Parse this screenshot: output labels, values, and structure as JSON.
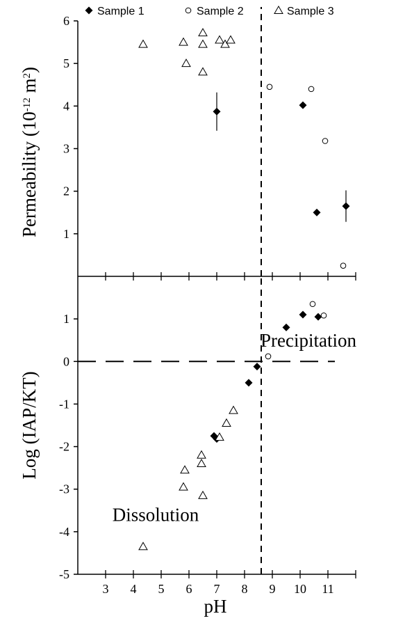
{
  "legend": {
    "placement": "top",
    "entries": [
      {
        "marker": "filled-diamond",
        "label": "Sample 1"
      },
      {
        "marker": "open-circle",
        "label": "Sample 2"
      },
      {
        "marker": "open-triangle",
        "label": "Sample 3"
      }
    ]
  },
  "chart_data": [
    {
      "type": "scatter",
      "panel": "top",
      "ylabel_main": "Permeability (10",
      "ylabel_exp": "-12",
      "ylabel_unit": " m",
      "ylabel_unit_exp": "2",
      "ylabel_close": ")",
      "xlim": [
        2,
        12
      ],
      "ylim": [
        0,
        6
      ],
      "yticks": [
        1,
        2,
        3,
        4,
        5,
        6
      ],
      "reference_lines": [
        {
          "orientation": "vertical",
          "x": 8.6,
          "style": "dashed"
        }
      ],
      "series": [
        {
          "name": "Sample 1",
          "marker": "filled-diamond",
          "points": [
            {
              "x": 7.0,
              "y": 3.87,
              "err": 0.45
            },
            {
              "x": 10.1,
              "y": 4.02
            },
            {
              "x": 10.6,
              "y": 1.5
            },
            {
              "x": 11.65,
              "y": 1.65,
              "err": 0.37
            }
          ]
        },
        {
          "name": "Sample 2",
          "marker": "open-circle",
          "points": [
            {
              "x": 8.9,
              "y": 4.45
            },
            {
              "x": 10.4,
              "y": 4.4
            },
            {
              "x": 10.9,
              "y": 3.18
            },
            {
              "x": 11.55,
              "y": 0.25
            }
          ]
        },
        {
          "name": "Sample 3",
          "marker": "open-triangle",
          "points": [
            {
              "x": 4.35,
              "y": 5.45
            },
            {
              "x": 5.8,
              "y": 5.5
            },
            {
              "x": 5.9,
              "y": 5.0
            },
            {
              "x": 6.5,
              "y": 5.72
            },
            {
              "x": 6.5,
              "y": 5.45
            },
            {
              "x": 6.5,
              "y": 4.8
            },
            {
              "x": 7.1,
              "y": 5.55
            },
            {
              "x": 7.3,
              "y": 5.45
            },
            {
              "x": 7.5,
              "y": 5.55
            }
          ]
        }
      ]
    },
    {
      "type": "scatter",
      "panel": "bottom",
      "xlabel": "pH",
      "ylabel": "Log (IAP/KT)",
      "xlim": [
        2,
        12
      ],
      "ylim": [
        -5,
        2
      ],
      "xticks": [
        3,
        4,
        5,
        6,
        7,
        8,
        9,
        10,
        11
      ],
      "yticks": [
        -5,
        -4,
        -3,
        -2,
        -1,
        0,
        1
      ],
      "reference_lines": [
        {
          "orientation": "vertical",
          "x": 8.6,
          "style": "dashed"
        },
        {
          "orientation": "horizontal",
          "y": 0,
          "style": "dashed"
        }
      ],
      "annotations": [
        {
          "text": "Precipitation",
          "x": 10.3,
          "y": 0.35
        },
        {
          "text": "Dissolution",
          "x": 4.8,
          "y": -3.75
        }
      ],
      "series": [
        {
          "name": "Sample 1",
          "marker": "filled-diamond",
          "points": [
            {
              "x": 6.9,
              "y": -1.75
            },
            {
              "x": 7.0,
              "y": -1.82
            },
            {
              "x": 8.15,
              "y": -0.5
            },
            {
              "x": 8.45,
              "y": -0.12
            },
            {
              "x": 9.5,
              "y": 0.8
            },
            {
              "x": 10.1,
              "y": 1.1
            },
            {
              "x": 10.65,
              "y": 1.05
            }
          ]
        },
        {
          "name": "Sample 2",
          "marker": "open-circle",
          "points": [
            {
              "x": 8.85,
              "y": 0.12
            },
            {
              "x": 10.45,
              "y": 1.35
            },
            {
              "x": 10.85,
              "y": 1.08
            }
          ]
        },
        {
          "name": "Sample 3",
          "marker": "open-triangle",
          "points": [
            {
              "x": 4.35,
              "y": -4.35
            },
            {
              "x": 5.8,
              "y": -2.95
            },
            {
              "x": 5.85,
              "y": -2.55
            },
            {
              "x": 6.45,
              "y": -2.4
            },
            {
              "x": 6.45,
              "y": -2.2
            },
            {
              "x": 6.5,
              "y": -3.15
            },
            {
              "x": 7.1,
              "y": -1.78
            },
            {
              "x": 7.35,
              "y": -1.45
            },
            {
              "x": 7.6,
              "y": -1.15
            }
          ]
        }
      ]
    }
  ]
}
